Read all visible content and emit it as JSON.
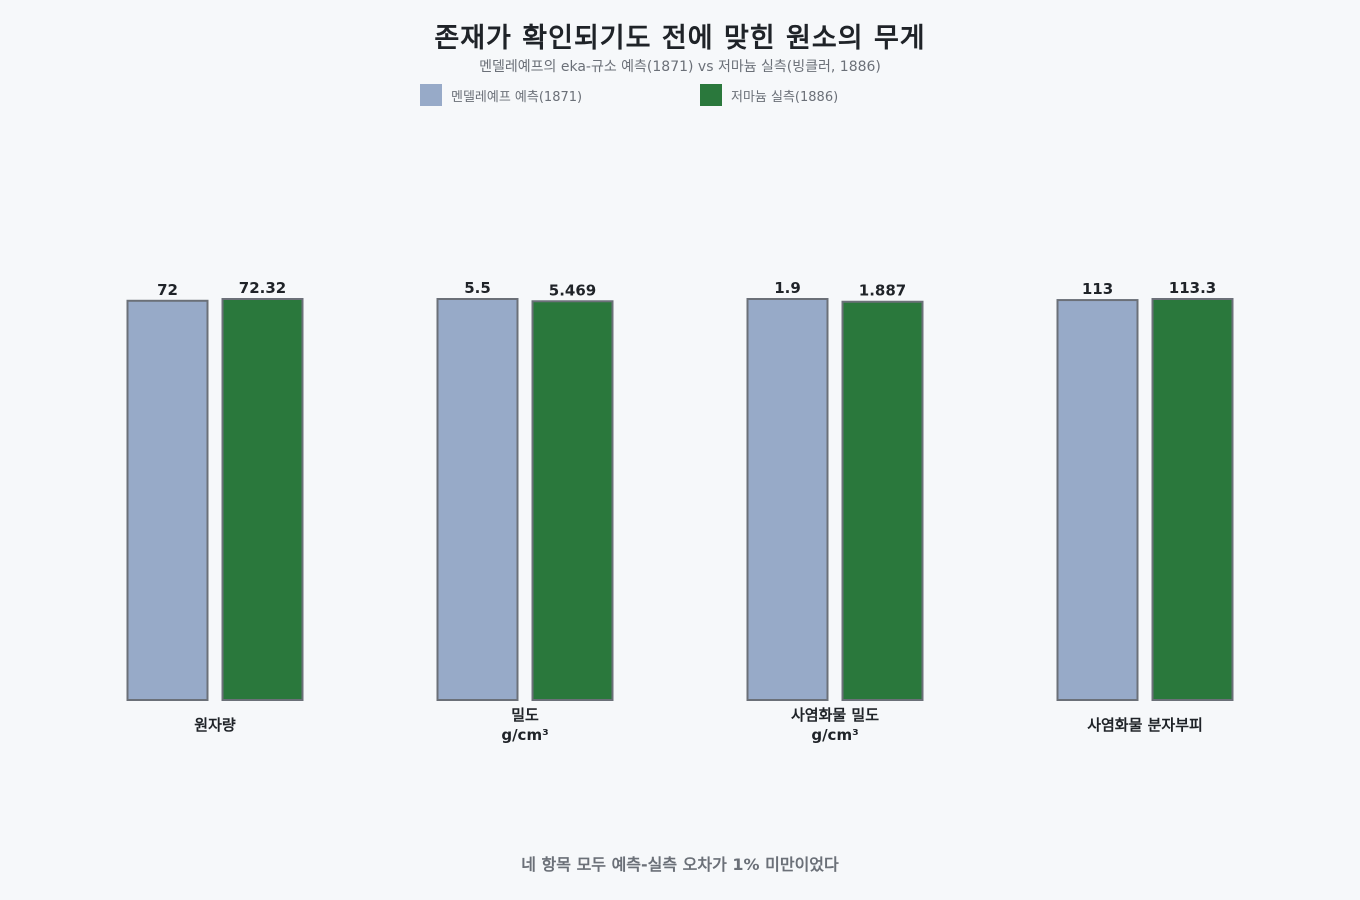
{
  "title": "존재가 확인되기도 전에 맞힌 원소의 무게",
  "subtitle": "멘델레예프의 eka-규소 예측(1871) vs 저마늄 실측(빙클러, 1886)",
  "footnote": "네 항목 모두 예측-실측 오차가 1% 미만이었다",
  "colors": {
    "predicted": "#97aac8",
    "measured": "#2a783c",
    "bar_border": "#6b7078",
    "label": "#1f2328"
  },
  "chart_data": {
    "type": "bar",
    "title": "존재가 확인되기도 전에 맞힌 원소의 무게",
    "subtitle": "멘델레예프의 eka-규소 예측(1871) vs 저마늄 실측(빙클러, 1886)",
    "legend_position": "top",
    "grid": false,
    "categories": [
      [
        "원자량"
      ],
      [
        "밀도",
        "g/cm³"
      ],
      [
        "사염화물 밀도",
        "g/cm³"
      ],
      [
        "사염화물 분자부피"
      ]
    ],
    "series": [
      {
        "name": "멘델레예프 예측(1871)",
        "values": [
          72,
          5.5,
          1.9,
          113
        ],
        "labels": [
          "72",
          "5.5",
          "1.9",
          "113"
        ]
      },
      {
        "name": "저마늄 실측(1886)",
        "values": [
          72.32,
          5.469,
          1.887,
          113.3
        ],
        "labels": [
          "72.32",
          "5.469",
          "1.887",
          "113.3"
        ]
      }
    ]
  }
}
